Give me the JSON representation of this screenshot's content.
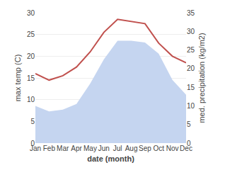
{
  "chart_data": {
    "type": "line",
    "categories": [
      "Jan",
      "Feb",
      "Mar",
      "Apr",
      "May",
      "Jun",
      "Jul",
      "Aug",
      "Sep",
      "Oct",
      "Nov",
      "Dec"
    ],
    "x_label": "date (month)",
    "y_label": "max temp (C)",
    "y2_label": "med. precipitation (kg/m2)",
    "series": [
      {
        "type": "area",
        "color": "#c5d5f0",
        "axis": "y2",
        "values": [
          10.0,
          8.5,
          9.0,
          10.5,
          16.0,
          22.5,
          27.5,
          27.5,
          27.0,
          24.0,
          17.0,
          13.0
        ]
      },
      {
        "type": "line",
        "color": "#c0504d",
        "values": [
          16.0,
          14.5,
          15.5,
          17.5,
          21.0,
          25.5,
          28.5,
          28.0,
          27.5,
          23.0,
          20.0,
          18.5
        ]
      }
    ],
    "ylim": [
      0,
      30
    ],
    "yticks": [
      0,
      5,
      10,
      15,
      20,
      25,
      30
    ],
    "y2lim": [
      0,
      35
    ],
    "y2ticks": [
      0,
      5,
      10,
      15,
      20,
      25,
      30,
      35
    ],
    "grid": true
  }
}
